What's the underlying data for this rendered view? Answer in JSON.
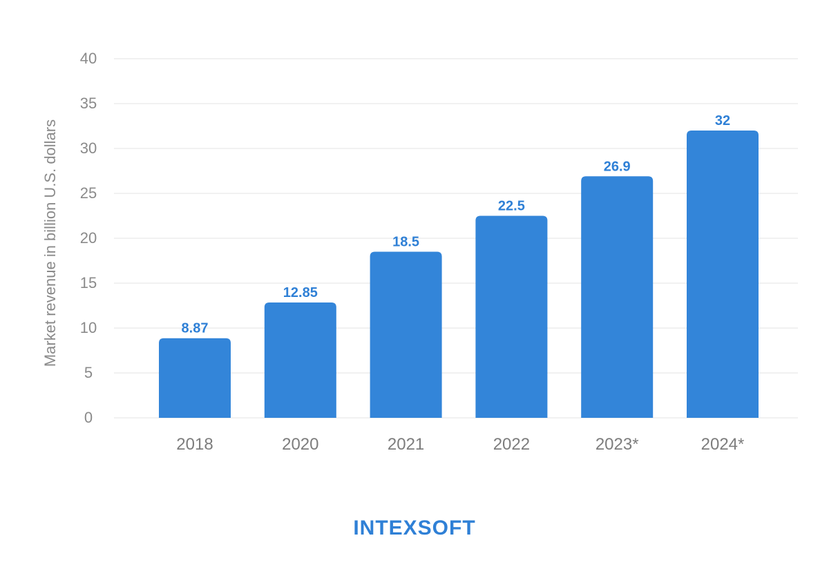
{
  "chart_data": {
    "type": "bar",
    "categories": [
      "2018",
      "2020",
      "2021",
      "2022",
      "2023*",
      "2024*"
    ],
    "values": [
      8.87,
      12.85,
      18.5,
      22.5,
      26.9,
      32
    ],
    "data_labels": [
      "8.87",
      "12.85",
      "18.5",
      "22.5",
      "26.9",
      "32"
    ],
    "ylabel": "Market revenue in billion U.S. dollars",
    "xlabel": "",
    "ylim": [
      0,
      40
    ],
    "yticks": [
      0,
      5,
      10,
      15,
      20,
      25,
      30,
      35,
      40
    ],
    "grid": true,
    "bar_color": "#3385d9",
    "label_color": "#2f80d6"
  },
  "brand": {
    "logo_text": "INTEXSOFT",
    "color": "#2f80d6"
  }
}
